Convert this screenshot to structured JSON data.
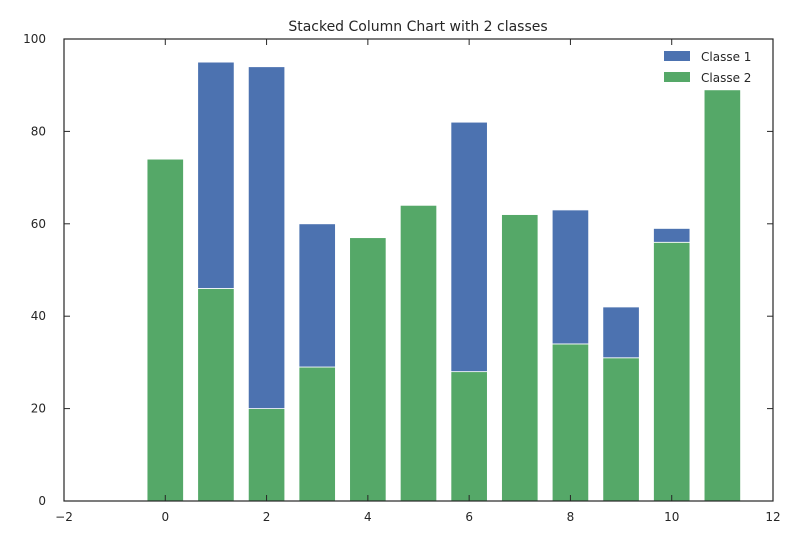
{
  "chart_data": {
    "type": "bar",
    "stacked": true,
    "title": "Stacked Column Chart with 2 classes",
    "xlabel": "",
    "ylabel": "",
    "x": [
      0,
      1,
      2,
      3,
      4,
      5,
      6,
      7,
      8,
      9,
      10,
      11
    ],
    "xlim": [
      -2,
      12
    ],
    "ylim": [
      0,
      100
    ],
    "xticks": [
      "−2",
      "0",
      "2",
      "4",
      "6",
      "8",
      "10",
      "12"
    ],
    "yticks": [
      "0",
      "20",
      "40",
      "60",
      "80",
      "100"
    ],
    "series": [
      {
        "name": "Classe 2",
        "color": "#55a868",
        "values": [
          74,
          46,
          20,
          29,
          57,
          64,
          28,
          62,
          34,
          31,
          56,
          89
        ]
      },
      {
        "name": "Classe 1",
        "color": "#4c72b0",
        "values": [
          0,
          49,
          74,
          31,
          0,
          0,
          54,
          0,
          29,
          11,
          3,
          0
        ]
      }
    ],
    "legend": {
      "position": "top-right",
      "order": [
        "Classe 1",
        "Classe 2"
      ]
    },
    "grid": false
  }
}
